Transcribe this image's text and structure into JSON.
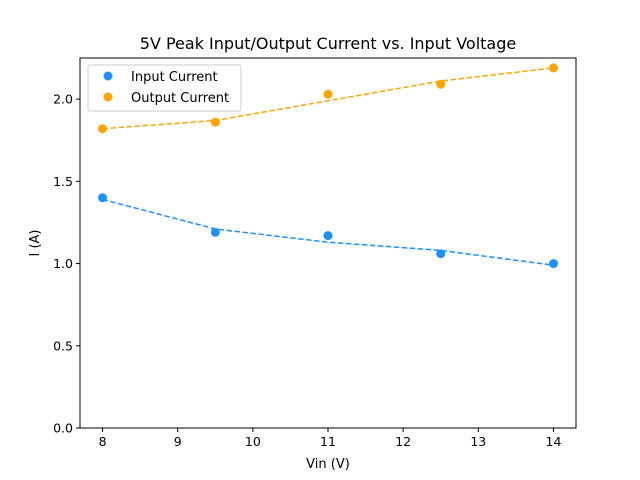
{
  "chart_data": {
    "type": "scatter",
    "title": "5V Peak Input/Output Current vs. Input Voltage",
    "xlabel": "Vin (V)",
    "ylabel": "I (A)",
    "xlim": [
      7.7,
      14.3
    ],
    "ylim": [
      0.0,
      2.25
    ],
    "xticks": [
      8,
      9,
      10,
      11,
      12,
      13,
      14
    ],
    "xtick_labels": [
      "8",
      "9",
      "10",
      "11",
      "12",
      "13",
      "14"
    ],
    "yticks": [
      0.0,
      0.5,
      1.0,
      1.5,
      2.0
    ],
    "ytick_labels": [
      "0.0",
      "0.5",
      "1.0",
      "1.5",
      "2.0"
    ],
    "grid": false,
    "legend_position": "top-left",
    "series": [
      {
        "name": "Input Current",
        "color": "#1e90ff",
        "x": [
          8,
          9.5,
          11,
          12.5,
          14
        ],
        "y": [
          1.4,
          1.19,
          1.17,
          1.06,
          1.0
        ],
        "fit_line": {
          "style": "dashed",
          "x": [
            8,
            9.5,
            11,
            12.5,
            14
          ],
          "y": [
            1.39,
            1.21,
            1.13,
            1.08,
            0.99
          ]
        }
      },
      {
        "name": "Output Current",
        "color": "#ffa500",
        "x": [
          8,
          9.5,
          11,
          12.5,
          14
        ],
        "y": [
          1.82,
          1.86,
          2.03,
          2.09,
          2.19
        ],
        "fit_line": {
          "style": "dashed",
          "x": [
            8,
            9.5,
            11,
            12.5,
            14
          ],
          "y": [
            1.82,
            1.87,
            1.99,
            2.11,
            2.19
          ]
        }
      }
    ]
  }
}
